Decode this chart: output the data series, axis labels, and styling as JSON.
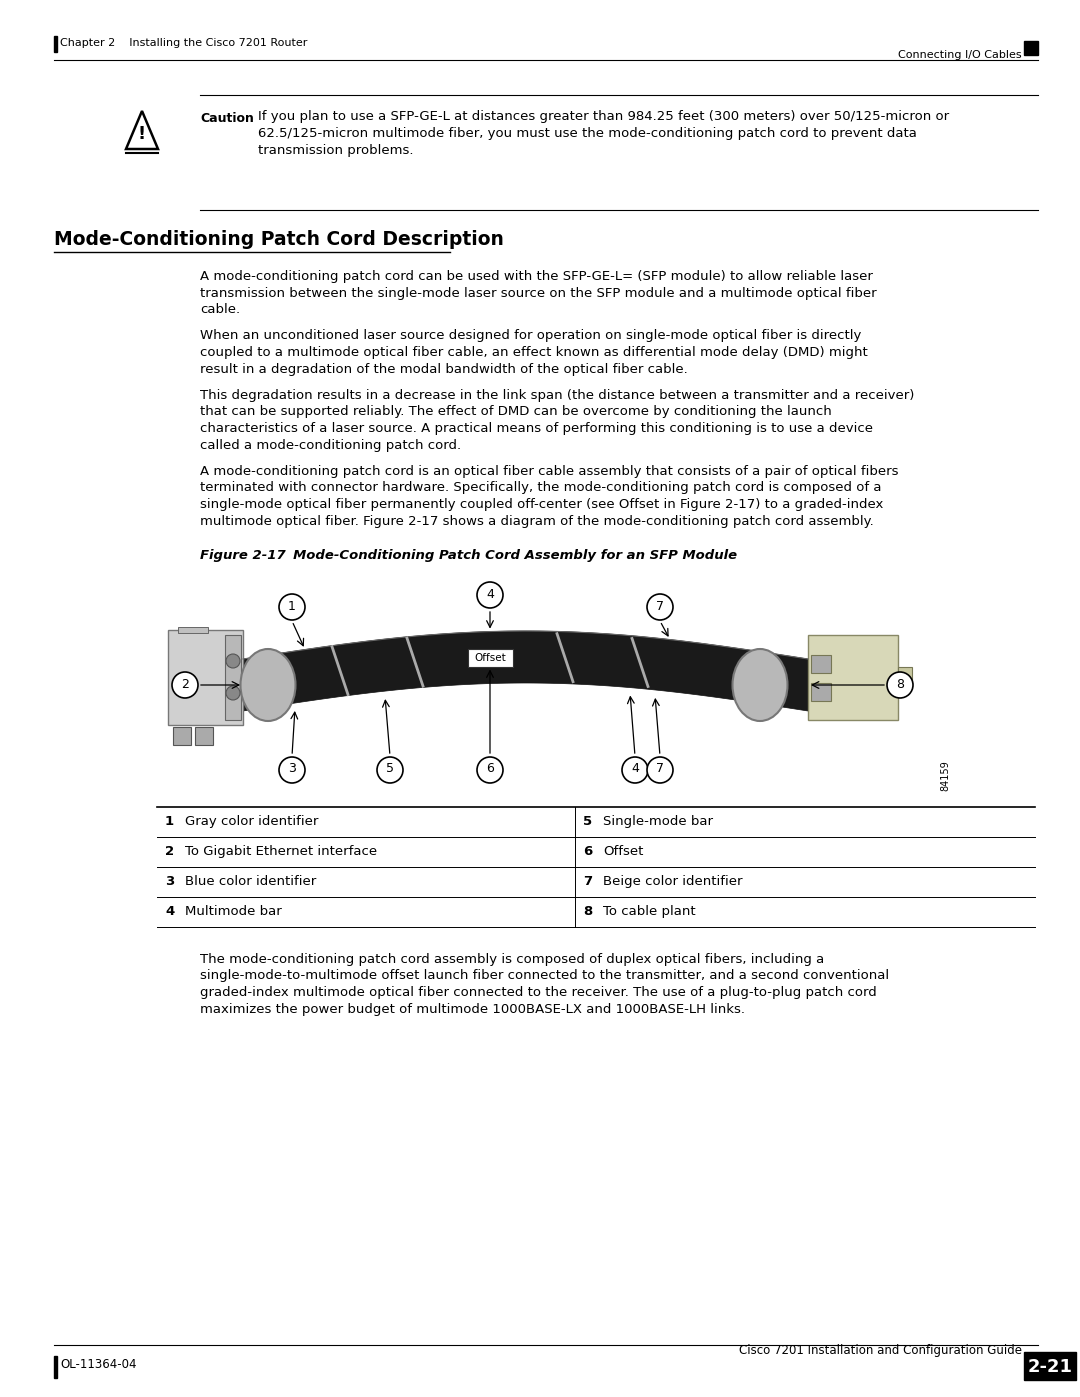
{
  "page_bg": "#ffffff",
  "header_left": "Chapter 2    Installing the Cisco 7201 Router",
  "header_right": "Connecting I/O Cables",
  "footer_left": "OL-11364-04",
  "footer_right_top": "Cisco 7201 Installation and Configuration Guide",
  "footer_right_box": "2-21",
  "section_title": "Mode-Conditioning Patch Cord Description",
  "caution_label": "Caution",
  "caution_text_line1": "If you plan to use a SFP-GE-L at distances greater than 984.25 feet (300 meters) over 50/125-micron or",
  "caution_text_line2": "62.5/125-micron multimode fiber, you must use the mode-conditioning patch cord to prevent data",
  "caution_text_line3": "transmission problems.",
  "para1_lines": [
    "A mode-conditioning patch cord can be used with the SFP-GE-L= (SFP module) to allow reliable laser",
    "transmission between the single-mode laser source on the SFP module and a multimode optical fiber",
    "cable."
  ],
  "para2_lines": [
    "When an unconditioned laser source designed for operation on single-mode optical fiber is directly",
    "coupled to a multimode optical fiber cable, an effect known as differential mode delay (DMD) might",
    "result in a degradation of the modal bandwidth of the optical fiber cable."
  ],
  "para3_lines": [
    "This degradation results in a decrease in the link span (the distance between a transmitter and a receiver)",
    "that can be supported reliably. The effect of DMD can be overcome by conditioning the launch",
    "characteristics of a laser source. A practical means of performing this conditioning is to use a device",
    "called a mode-conditioning patch cord."
  ],
  "para4_lines": [
    "A mode-conditioning patch cord is an optical fiber cable assembly that consists of a pair of optical fibers",
    "terminated with connector hardware. Specifically, the mode-conditioning patch cord is composed of a",
    "single-mode optical fiber permanently coupled off-center (see Offset in Figure 2-17) to a graded-index",
    "multimode optical fiber. Figure 2-17 shows a diagram of the mode-conditioning patch cord assembly."
  ],
  "fig_label": "Figure 2-17",
  "fig_title": "     Mode-Conditioning Patch Cord Assembly for an SFP Module",
  "table_data": [
    [
      "1",
      "Gray color identifier",
      "5",
      "Single-mode bar"
    ],
    [
      "2",
      "To Gigabit Ethernet interface",
      "6",
      "Offset"
    ],
    [
      "3",
      "Blue color identifier",
      "7",
      "Beige color identifier"
    ],
    [
      "4",
      "Multimode bar",
      "8",
      "To cable plant"
    ]
  ],
  "para5_lines": [
    "The mode-conditioning patch cord assembly is composed of duplex optical fibers, including a",
    "single-mode-to-multimode offset launch fiber connected to the transmitter, and a second conventional",
    "graded-index multimode optical fiber connected to the receiver. The use of a plug-to-plug patch cord",
    "maximizes the power budget of multimode 1000BASE-LX and 1000BASE-LH links."
  ],
  "link_color": "#0000cc"
}
